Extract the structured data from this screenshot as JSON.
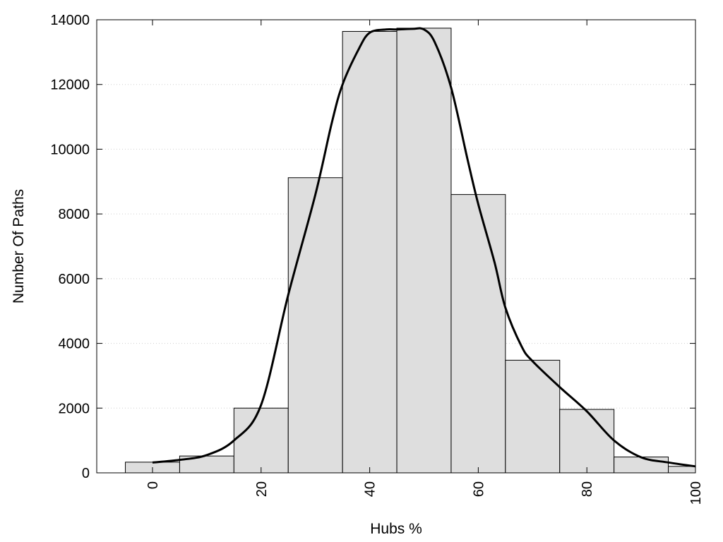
{
  "chart_data": {
    "type": "bar",
    "title": "",
    "xlabel": "Hubs %",
    "ylabel": "Number Of Paths",
    "xlim": [
      -10,
      100
    ],
    "ylim": [
      0,
      14000
    ],
    "x_ticks": [
      0,
      20,
      40,
      60,
      80,
      100
    ],
    "y_ticks": [
      0,
      2000,
      4000,
      6000,
      8000,
      10000,
      12000,
      14000
    ],
    "grid": "horizontal dotted",
    "bar_color": "#dedede",
    "line_color": "#000000",
    "bin_width": 10,
    "bins": [
      {
        "x": 0,
        "value": 330
      },
      {
        "x": 10,
        "value": 520
      },
      {
        "x": 20,
        "value": 2000
      },
      {
        "x": 30,
        "value": 9120
      },
      {
        "x": 40,
        "value": 13640
      },
      {
        "x": 50,
        "value": 13740
      },
      {
        "x": 60,
        "value": 8600
      },
      {
        "x": 70,
        "value": 3480
      },
      {
        "x": 80,
        "value": 1960
      },
      {
        "x": 90,
        "value": 490
      },
      {
        "x": 100,
        "value": 200
      }
    ],
    "series": [
      {
        "type": "line",
        "x": [
          0,
          5,
          10,
          15,
          20,
          25,
          30,
          33,
          35,
          38,
          40,
          43,
          45,
          48,
          50,
          52,
          55,
          58,
          60,
          63,
          65,
          68,
          70,
          75,
          80,
          85,
          90,
          95,
          100
        ],
        "y": [
          320,
          400,
          550,
          1000,
          2100,
          5500,
          8600,
          10800,
          12000,
          13100,
          13600,
          13700,
          13700,
          13720,
          13700,
          13300,
          11900,
          9700,
          8300,
          6500,
          5100,
          3900,
          3450,
          2650,
          1900,
          1000,
          480,
          320,
          200
        ]
      }
    ]
  }
}
